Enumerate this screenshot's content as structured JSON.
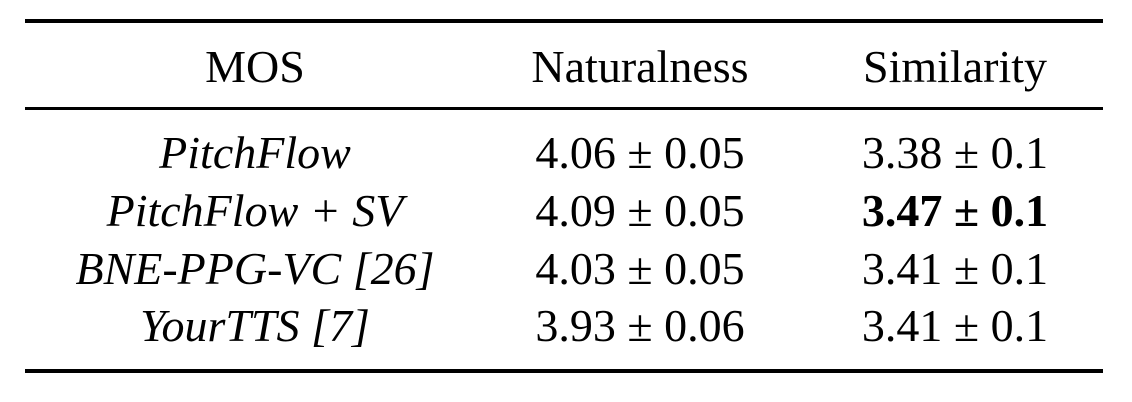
{
  "table": {
    "headers": [
      "MOS",
      "Naturalness",
      "Similarity"
    ],
    "rows": [
      {
        "model": "PitchFlow",
        "naturalness": "4.06 ± 0.05",
        "similarity": "3.38 ± 0.1",
        "similarity_bold": false
      },
      {
        "model": "PitchFlow + SV",
        "naturalness": "4.09 ± 0.05",
        "similarity": "3.47 ± 0.1",
        "similarity_bold": true
      },
      {
        "model": "BNE-PPG-VC [26]",
        "naturalness": "4.03 ± 0.05",
        "similarity": "3.41 ± 0.1",
        "similarity_bold": false
      },
      {
        "model": "YourTTS [7]",
        "naturalness": "3.93 ± 0.06",
        "similarity": "3.41 ± 0.1",
        "similarity_bold": false
      }
    ]
  }
}
